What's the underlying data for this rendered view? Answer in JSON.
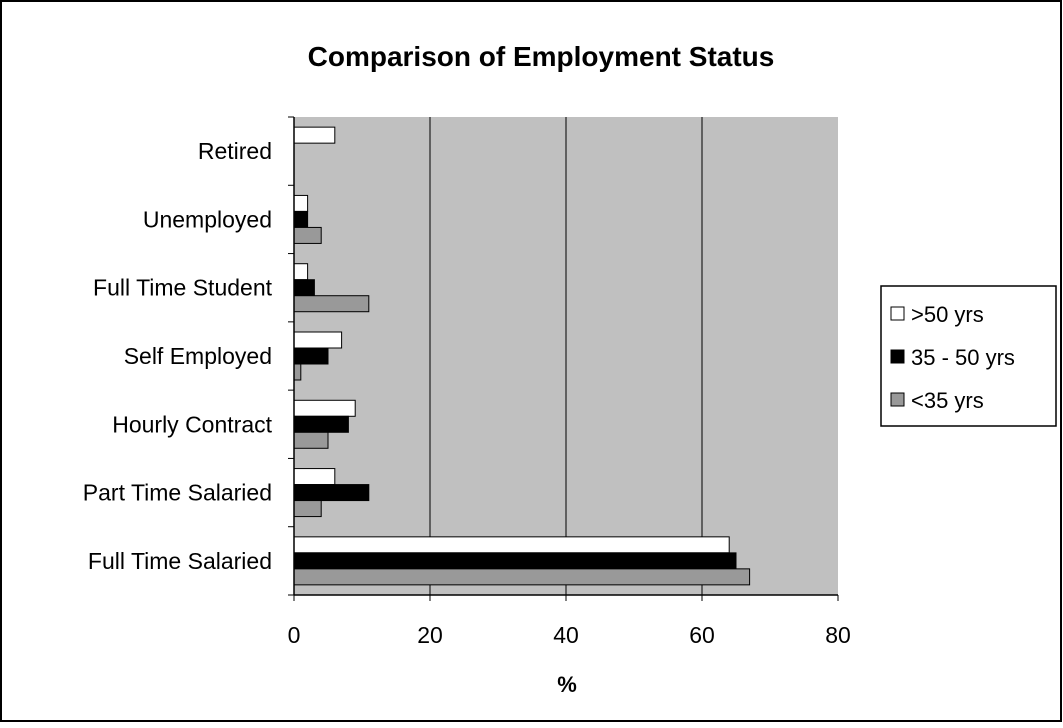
{
  "chart_data": {
    "type": "bar",
    "orientation": "horizontal",
    "title": "Comparison of Employment Status",
    "xlabel": "%",
    "ylabel": "",
    "xlim": [
      0,
      80
    ],
    "xticks": [
      0,
      20,
      40,
      60,
      80
    ],
    "categories": [
      "Full Time Salaried",
      "Part Time Salaried",
      "Hourly Contract",
      "Self Employed",
      "Full Time Student",
      "Unemployed",
      "Retired"
    ],
    "series": [
      {
        "name": ">50 yrs",
        "color": "#ffffff",
        "values": [
          64,
          6,
          9,
          7,
          2,
          2,
          6
        ]
      },
      {
        "name": "35 - 50 yrs",
        "color": "#000000",
        "values": [
          65,
          11,
          8,
          5,
          3,
          2,
          0
        ]
      },
      {
        "name": "<35 yrs",
        "color": "#999999",
        "values": [
          67,
          4,
          5,
          1,
          11,
          4,
          0
        ]
      }
    ],
    "grid": "vertical",
    "plot_background": "#c0c0c0",
    "legend_position": "right"
  }
}
